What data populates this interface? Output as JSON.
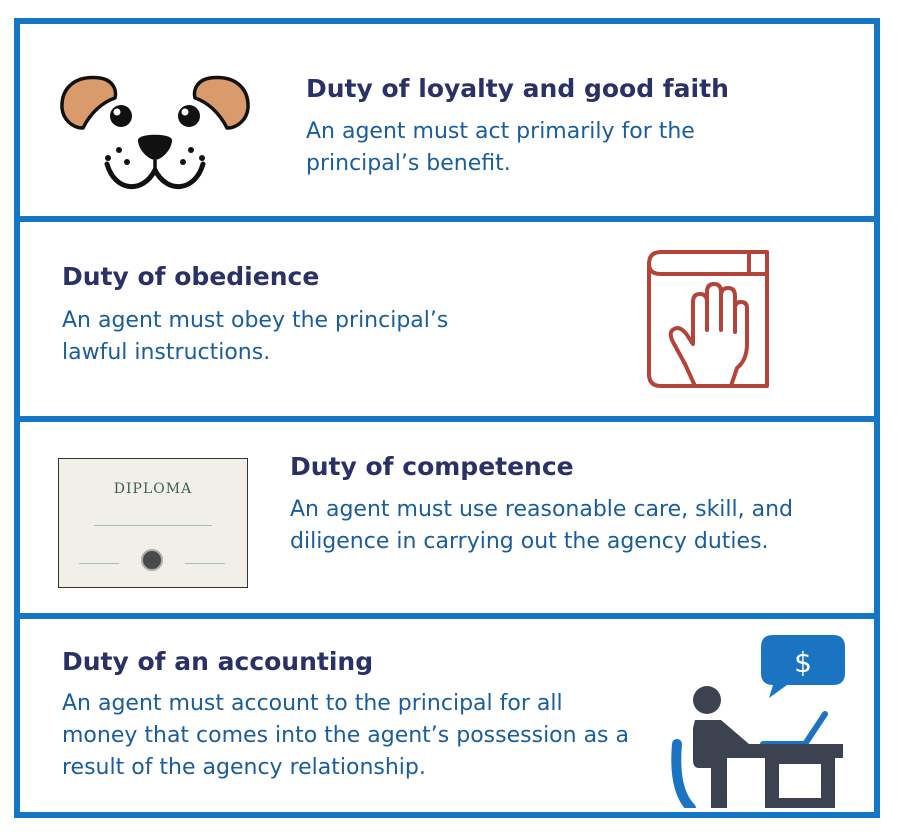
{
  "duties": [
    {
      "title": "Duty of loyalty and good faith",
      "description": "An agent must act primarily for the principal’s benefit.",
      "icon": "dog-face-icon"
    },
    {
      "title": "Duty of obedience",
      "description": "An agent must obey the principal’s lawful instructions.",
      "icon": "hand-on-book-icon"
    },
    {
      "title": "Duty of competence",
      "description": "An agent must use reasonable care, skill, and diligence in carrying out the agency duties.",
      "icon": "diploma-image",
      "diploma_text": "DIPLOMA"
    },
    {
      "title": "Duty of an accounting",
      "description": "An agent must account to the principal for all money that comes into the agent’s possession as a result of the agency relationship.",
      "icon": "person-at-desk-icon",
      "speech_symbol": "$"
    }
  ],
  "colors": {
    "border": "#1577c4",
    "title": "#2a3164",
    "body": "#1a5d9c",
    "book": "#b4443a",
    "ear": "#d99a6c",
    "person": "#3d4250",
    "chair": "#1b74c2"
  }
}
